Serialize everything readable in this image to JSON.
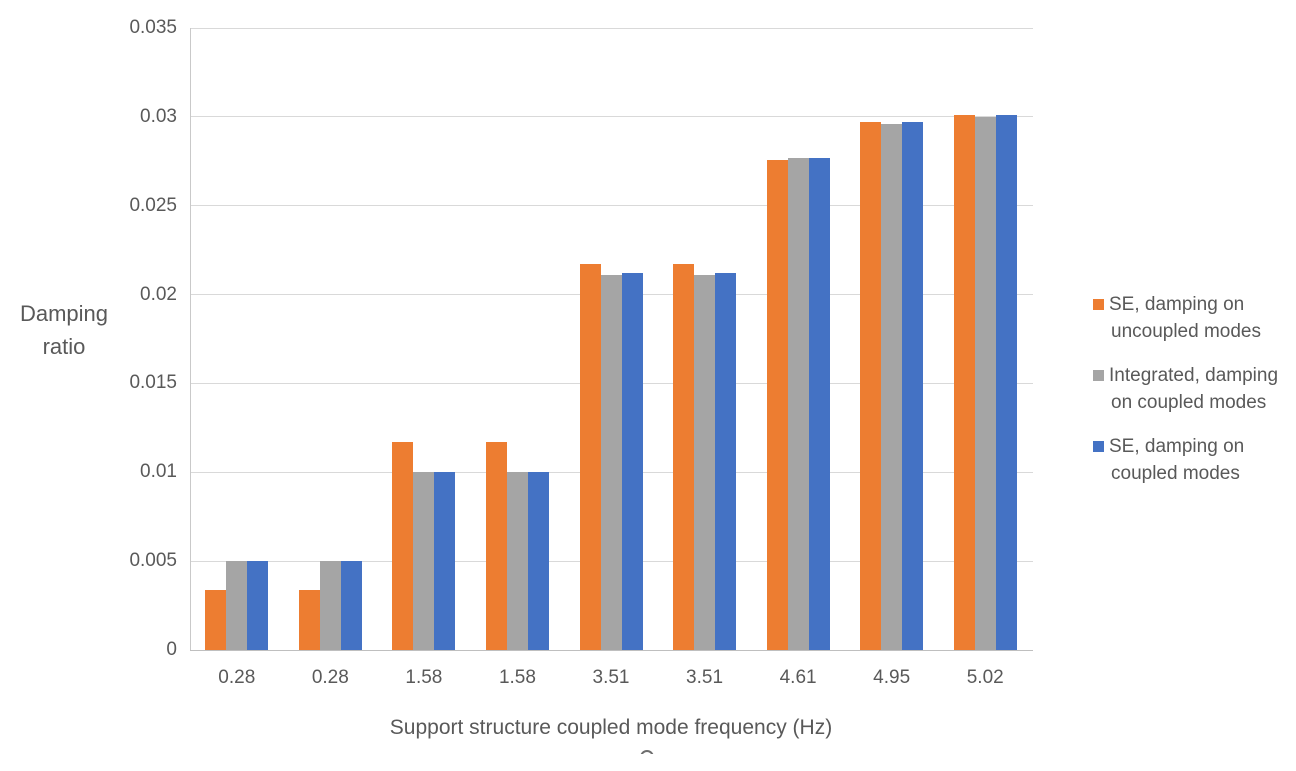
{
  "chart_data": {
    "type": "bar",
    "title": "",
    "xlabel": "Support structure coupled mode frequency (Hz)",
    "ylabel": "Damping ratio",
    "categories": [
      "0.28",
      "0.28",
      "1.58",
      "1.58",
      "3.51",
      "3.51",
      "4.61",
      "4.95",
      "5.02"
    ],
    "series": [
      {
        "name": "SE, damping on uncoupled modes",
        "color": "#ED7D31",
        "values": [
          0.0034,
          0.0034,
          0.0117,
          0.0117,
          0.0217,
          0.0217,
          0.0276,
          0.0297,
          0.0301
        ]
      },
      {
        "name": "Integrated, damping on coupled modes",
        "color": "#A5A5A5",
        "values": [
          0.005,
          0.005,
          0.01,
          0.01,
          0.0211,
          0.0211,
          0.0277,
          0.0296,
          0.03
        ]
      },
      {
        "name": "SE, damping on coupled modes",
        "color": "#4472C4",
        "values": [
          0.005,
          0.005,
          0.01,
          0.01,
          0.0212,
          0.0212,
          0.0277,
          0.0297,
          0.0301
        ]
      }
    ],
    "ylim": [
      0,
      0.035
    ],
    "ytick_step": 0.005,
    "yticks": [
      "0",
      "0.005",
      "0.01",
      "0.015",
      "0.02",
      "0.025",
      "0.03",
      "0.035"
    ],
    "grid": true,
    "legend_position": "right"
  },
  "ylabel": {
    "line1": "Damping",
    "line2": "ratio"
  },
  "xlabel": "Support structure coupled mode frequency (Hz)",
  "legend": {
    "entries": [
      {
        "line1": "SE, damping on",
        "line2": "uncoupled modes",
        "color": "#ED7D31"
      },
      {
        "line1": "Integrated, damping",
        "line2": "on coupled modes",
        "color": "#A5A5A5"
      },
      {
        "line1": "SE, damping on",
        "line2": "coupled modes",
        "color": "#4472C4"
      }
    ]
  },
  "colors": {
    "grid": "#D9D9D9",
    "axis": "#BFBFBF",
    "text": "#595959"
  }
}
